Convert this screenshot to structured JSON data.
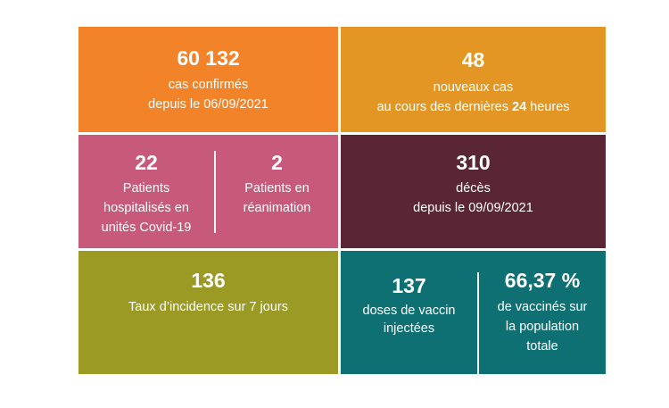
{
  "confirmed": {
    "value": "60 132",
    "line1": "cas confirmés",
    "line2": "depuis le 06/09/2021",
    "color": "#f28329"
  },
  "new_cases": {
    "value": "48",
    "line1": "nouveaux cas",
    "line2_pre": "au cours des dernières ",
    "line2_bold": "24",
    "line2_post": " heures",
    "color": "#e39624"
  },
  "hospitalized": {
    "value": "22",
    "line1": "Patients",
    "line2": "hospitalisés en",
    "line3": "unités Covid-19",
    "color": "#c75a7a"
  },
  "icu": {
    "value": "2",
    "line1": "Patients en",
    "line2": "réanimation",
    "color": "#c75a7a"
  },
  "deaths": {
    "value": "310",
    "line1": "décès",
    "line2": "depuis le 09/09/2021",
    "color": "#5a2535"
  },
  "incidence": {
    "value": "136",
    "line1": "Taux d’incidence sur 7 jours",
    "color": "#9a9a24"
  },
  "doses": {
    "value": "137",
    "line1": "doses de vaccin",
    "line2": "injectées",
    "color": "#0f7074"
  },
  "vaccinated": {
    "value": "66,37 %",
    "line1": "de vaccinés sur",
    "line2": "la population",
    "line3": "totale",
    "color": "#0f7074"
  }
}
